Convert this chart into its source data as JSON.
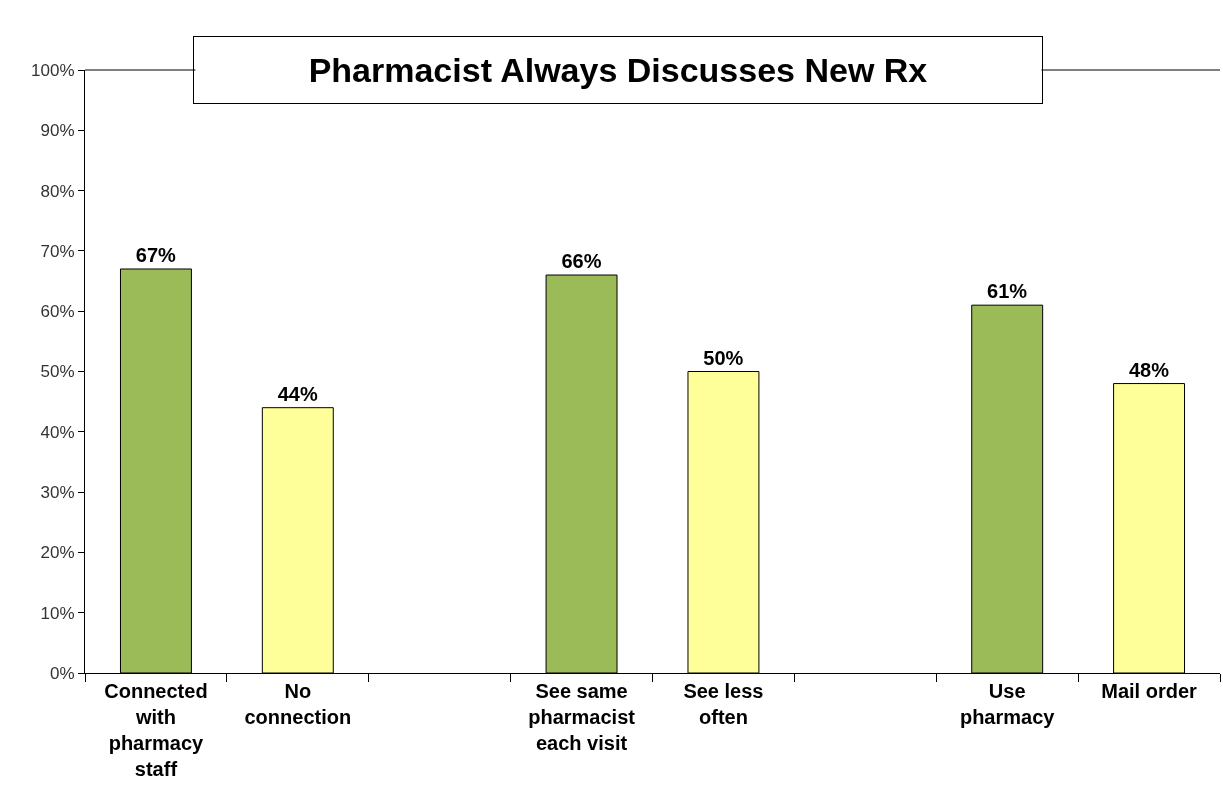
{
  "chart_data": {
    "type": "bar",
    "title": "Pharmacist Always Discusses New Rx",
    "categories": [
      "Connected with pharmacy staff",
      "No connection",
      null,
      "See same pharmacist each visit",
      "See less often",
      null,
      "Use pharmacy",
      "Mail order"
    ],
    "values": [
      67,
      44,
      null,
      66,
      50,
      null,
      61,
      48
    ],
    "colors": [
      "#9bbb59",
      "#ffff99",
      null,
      "#9bbb59",
      "#ffff99",
      null,
      "#9bbb59",
      "#ffff99"
    ],
    "value_labels": [
      "67%",
      "44%",
      null,
      "66%",
      "50%",
      null,
      "61%",
      "48%"
    ],
    "ylim": [
      0,
      100
    ],
    "yticks": [
      {
        "value": 0,
        "label": "0%"
      },
      {
        "value": 10,
        "label": "10%"
      },
      {
        "value": 20,
        "label": "20%"
      },
      {
        "value": 30,
        "label": "30%"
      },
      {
        "value": 40,
        "label": "40%"
      },
      {
        "value": 50,
        "label": "50%"
      },
      {
        "value": 60,
        "label": "60%"
      },
      {
        "value": 70,
        "label": "70%"
      },
      {
        "value": 80,
        "label": "80%"
      },
      {
        "value": 90,
        "label": "90%"
      },
      {
        "value": 100,
        "label": "100%"
      }
    ],
    "legend": false
  }
}
